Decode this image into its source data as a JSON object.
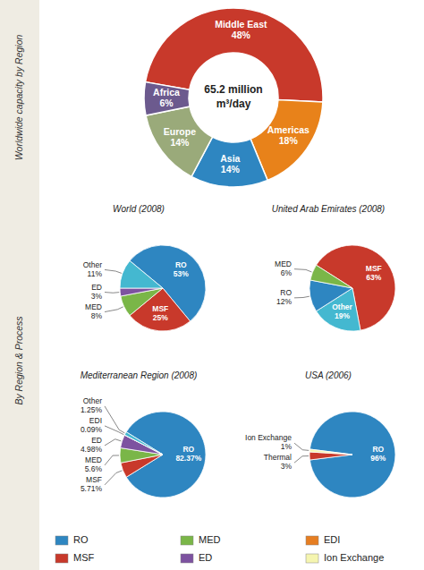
{
  "chart_data": [
    {
      "type": "donut",
      "categories": [
        "Middle East",
        "Americas",
        "Asia",
        "Europe",
        "Africa"
      ],
      "values": [
        48,
        18,
        14,
        14,
        6
      ],
      "value_labels": [
        "48%",
        "18%",
        "14%",
        "14%",
        "6%"
      ],
      "colors": [
        "#c8392b",
        "#e8821a",
        "#2e86c1",
        "#9aaa7a",
        "#6c5a8e"
      ],
      "data_labels": true,
      "annotations": [
        "65.2 million",
        "m³/day"
      ]
    },
    {
      "type": "pie",
      "title": "World (2008)",
      "categories": [
        "RO",
        "MSF",
        "MED",
        "ED",
        "Other"
      ],
      "values": [
        53,
        25,
        8,
        3,
        11
      ],
      "value_labels": [
        "53%",
        "25%",
        "8%",
        "3%",
        "11%"
      ],
      "colors": [
        "#2e86c1",
        "#c8392b",
        "#7ab648",
        "#7d52a0",
        "#44b8d0"
      ],
      "data_labels": true
    },
    {
      "type": "pie",
      "title": "United Arab Emirates (2008)",
      "categories": [
        "MSF",
        "Other",
        "RO",
        "MED"
      ],
      "values": [
        63,
        19,
        12,
        6
      ],
      "value_labels": [
        "63%",
        "19%",
        "12%",
        "6%"
      ],
      "colors": [
        "#c8392b",
        "#44b8d0",
        "#2e86c1",
        "#7ab648"
      ],
      "data_labels": true
    },
    {
      "type": "pie",
      "title": "Mediterranean Region (2008)",
      "categories": [
        "RO",
        "MSF",
        "MED",
        "ED",
        "EDI",
        "Other"
      ],
      "values": [
        82.37,
        5.71,
        5.6,
        4.98,
        0.09,
        1.25
      ],
      "value_labels": [
        "82.37%",
        "5.71%",
        "5.6%",
        "4.98%",
        "0.09%",
        "1.25%"
      ],
      "colors": [
        "#2e86c1",
        "#c8392b",
        "#7ab648",
        "#7d52a0",
        "#e67e22",
        "#44b8d0"
      ],
      "data_labels": true
    },
    {
      "type": "pie",
      "title": "USA (2006)",
      "categories": [
        "RO",
        "Thermal",
        "Ion Exchange"
      ],
      "values": [
        96,
        3,
        1
      ],
      "value_labels": [
        "96%",
        "3%",
        "1%"
      ],
      "colors": [
        "#2e86c1",
        "#c8392b",
        "#f5f5b0"
      ],
      "data_labels": true
    }
  ],
  "annotations": [
    "Worldwide capacity by Region",
    "By Region & Process"
  ],
  "legend_items": [
    {
      "name": "RO",
      "color": "#2e86c1"
    },
    {
      "name": "MSF",
      "color": "#c8392b"
    },
    {
      "name": "MED",
      "color": "#7ab648"
    },
    {
      "name": "ED",
      "color": "#7d52a0"
    },
    {
      "name": "EDI",
      "color": "#e67e22"
    },
    {
      "name": "Ion Exchange",
      "color": "#f5f5b0"
    }
  ]
}
